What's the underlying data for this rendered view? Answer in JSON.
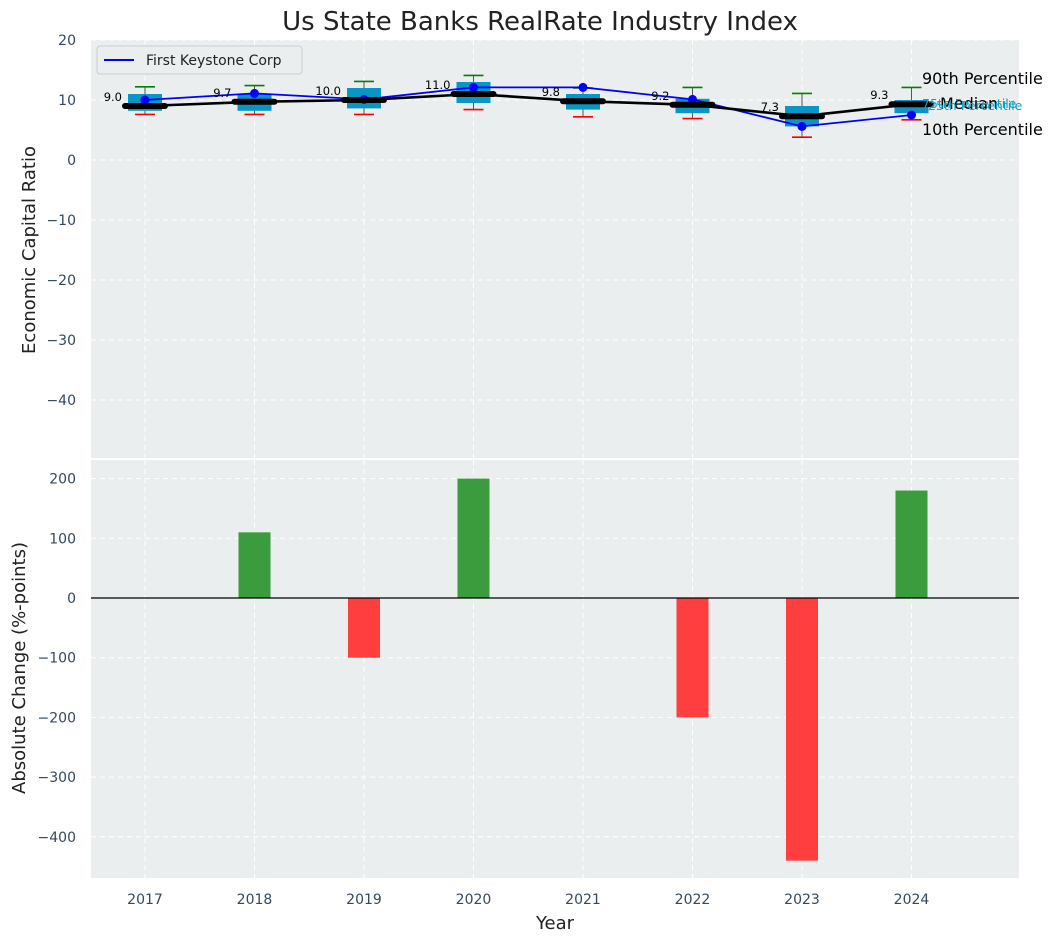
{
  "chart_data": {
    "title": "Us State Banks RealRate Industry Index",
    "xlabel": "Year",
    "categories": [
      "2017",
      "2018",
      "2019",
      "2020",
      "2021",
      "2022",
      "2023",
      "2024"
    ],
    "top_panel": {
      "type": "box-line",
      "ylabel": "Economic Capital Ratio",
      "ylim": [
        -50,
        20
      ],
      "yticks": [
        20,
        10,
        0,
        -10,
        -20,
        -30,
        -40
      ],
      "p10": [
        7.6,
        7.6,
        7.6,
        8.4,
        7.2,
        6.9,
        3.8,
        6.7
      ],
      "p25": [
        8.2,
        8.2,
        8.6,
        9.5,
        8.4,
        7.8,
        5.6,
        7.8
      ],
      "median": [
        9.0,
        9.7,
        10.0,
        11.0,
        9.8,
        9.2,
        7.3,
        9.3
      ],
      "p75": [
        11.0,
        11.0,
        12.0,
        13.0,
        11.0,
        10.2,
        9.0,
        10.0
      ],
      "p90": [
        12.2,
        12.4,
        13.1,
        14.1,
        12.0,
        12.1,
        11.1,
        12.1
      ],
      "median_labels": [
        "9.0",
        "9.7",
        "10.0",
        "11.0",
        "9.8",
        "9.2",
        "7.3",
        "9.3"
      ],
      "company": {
        "name": "First Keystone Corp",
        "values": [
          10.0,
          11.1,
          10.1,
          12.1,
          12.1,
          10.1,
          5.6,
          7.5
        ]
      },
      "annotations": {
        "p90": "90th Percentile",
        "p75": "75th Percentile",
        "median": "Median",
        "p25": "25th Percentile",
        "p10": "10th Percentile"
      }
    },
    "bottom_panel": {
      "type": "bar",
      "ylabel": "Absolute Change (%-points)",
      "ylim": [
        -470,
        230
      ],
      "yticks": [
        200,
        100,
        0,
        -100,
        -200,
        -300,
        -400
      ],
      "values": [
        0,
        110,
        -100,
        200,
        0,
        -200,
        -440,
        180
      ]
    },
    "colors": {
      "background": "#eaeeef",
      "box": "#0796c6",
      "company_line": "#0000ff",
      "median_line": "#000000",
      "whisker_high": "#008000",
      "whisker_low": "#ff0000",
      "bar_positive": "#3a9c3c",
      "bar_negative": "#fe3e3f",
      "p25_text": "#14a0c4"
    }
  }
}
